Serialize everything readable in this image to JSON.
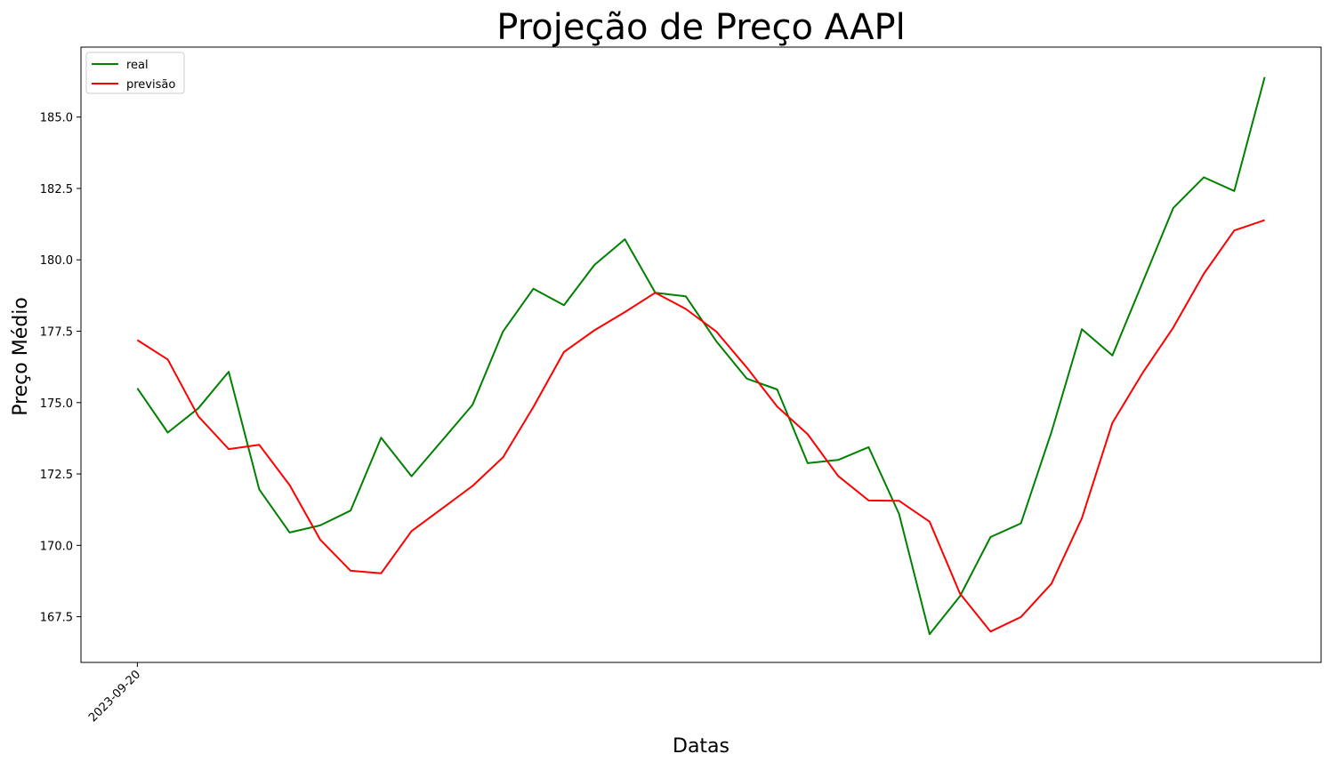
{
  "chart_data": {
    "type": "line",
    "title": "Projeção de Preço AAPl",
    "xlabel": "Datas",
    "ylabel": "Preço Médio",
    "x_tick_labels": [
      "2023-09-20"
    ],
    "y_tick_labels": [
      "167.5",
      "170.0",
      "172.5",
      "175.0",
      "177.5",
      "180.0",
      "182.5",
      "185.0"
    ],
    "y_ticks": [
      167.5,
      170.0,
      172.5,
      175.0,
      177.5,
      180.0,
      182.5,
      185.0
    ],
    "ylim": [
      165.9,
      187.45
    ],
    "xlim": [
      -1.85,
      38.85
    ],
    "grid": false,
    "legend_position": "upper left",
    "series": [
      {
        "name": "real",
        "color": "#008000",
        "values": [
          175.5,
          173.95,
          174.8,
          176.08,
          171.96,
          170.45,
          170.7,
          171.22,
          173.77,
          172.42,
          173.67,
          174.92,
          177.49,
          178.99,
          178.41,
          179.82,
          180.72,
          178.85,
          178.72,
          177.15,
          175.84,
          175.46,
          172.88,
          172.99,
          173.44,
          171.1,
          166.89,
          168.22,
          170.29,
          170.77,
          173.97,
          177.57,
          176.65,
          179.23,
          181.82,
          182.89,
          182.41,
          186.4
        ]
      },
      {
        "name": "previsão",
        "color": "#ff0000",
        "values": [
          177.19,
          176.51,
          174.52,
          173.37,
          173.52,
          172.11,
          170.2,
          169.11,
          169.02,
          170.5,
          171.29,
          172.08,
          173.08,
          174.85,
          176.77,
          177.53,
          178.17,
          178.85,
          178.28,
          177.49,
          176.23,
          174.86,
          173.89,
          172.43,
          171.57,
          171.56,
          170.83,
          168.31,
          166.98,
          167.49,
          168.66,
          170.95,
          174.29,
          176.05,
          177.63,
          179.51,
          181.03,
          181.39
        ]
      }
    ]
  }
}
